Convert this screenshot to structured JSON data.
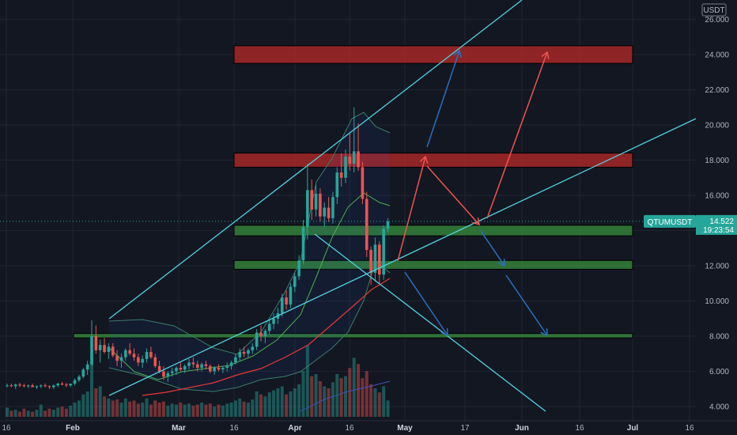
{
  "chart_data": {
    "type": "candlestick",
    "symbol": "QTUMUSDT",
    "currency": "USDT",
    "last_price": "14.522",
    "countdown": "19:23:54",
    "ylim": [
      3.4,
      27.2
    ],
    "y_ticks": [
      "26.000",
      "24.000",
      "22.000",
      "20.000",
      "18.000",
      "16.000",
      "12.000",
      "10.000",
      "8.000",
      "6.000",
      "4.000"
    ],
    "x_ticks": [
      {
        "label": "16",
        "bold": false
      },
      {
        "label": "Feb",
        "bold": true
      },
      {
        "label": "Mar",
        "bold": true
      },
      {
        "label": "16",
        "bold": false
      },
      {
        "label": "Apr",
        "bold": true
      },
      {
        "label": "16",
        "bold": false
      },
      {
        "label": "May",
        "bold": true
      },
      {
        "label": "17",
        "bold": false
      },
      {
        "label": "Jun",
        "bold": true
      },
      {
        "label": "16",
        "bold": false
      },
      {
        "label": "Jul",
        "bold": true
      },
      {
        "label": "16",
        "bold": false
      }
    ],
    "candles": [
      [
        5.2,
        5.3,
        5.1,
        5.2
      ],
      [
        5.2,
        5.3,
        5.1,
        5.15
      ],
      [
        5.15,
        5.3,
        5.0,
        5.25
      ],
      [
        5.25,
        5.35,
        5.1,
        5.2
      ],
      [
        5.2,
        5.3,
        5.1,
        5.15
      ],
      [
        5.15,
        5.25,
        5.05,
        5.2
      ],
      [
        5.2,
        5.3,
        5.1,
        5.1
      ],
      [
        5.1,
        5.2,
        5.0,
        5.15
      ],
      [
        5.15,
        5.25,
        5.05,
        5.2
      ],
      [
        5.2,
        5.3,
        5.1,
        5.15
      ],
      [
        5.15,
        5.2,
        5.0,
        5.1
      ],
      [
        5.1,
        5.25,
        5.0,
        5.2
      ],
      [
        5.2,
        5.35,
        5.1,
        5.3
      ],
      [
        5.3,
        5.4,
        5.2,
        5.25
      ],
      [
        5.25,
        5.35,
        5.1,
        5.2
      ],
      [
        5.2,
        5.3,
        5.1,
        5.3
      ],
      [
        5.3,
        5.6,
        5.2,
        5.5
      ],
      [
        5.5,
        5.8,
        5.4,
        5.7
      ],
      [
        5.7,
        6.2,
        5.6,
        6.1
      ],
      [
        6.1,
        6.6,
        5.8,
        6.4
      ],
      [
        6.4,
        8.9,
        6.3,
        8.0
      ],
      [
        8.0,
        8.6,
        7.0,
        7.2
      ],
      [
        7.2,
        7.8,
        6.5,
        7.5
      ],
      [
        7.5,
        7.9,
        7.0,
        7.1
      ],
      [
        7.1,
        7.6,
        6.7,
        7.4
      ],
      [
        7.4,
        7.6,
        6.8,
        6.9
      ],
      [
        6.9,
        7.2,
        6.3,
        6.6
      ],
      [
        6.6,
        7.0,
        6.2,
        6.8
      ],
      [
        6.8,
        7.3,
        6.6,
        7.2
      ],
      [
        7.2,
        7.6,
        6.9,
        7.0
      ],
      [
        7.0,
        7.3,
        6.6,
        6.8
      ],
      [
        6.8,
        7.0,
        6.3,
        6.5
      ],
      [
        6.5,
        6.9,
        6.2,
        6.7
      ],
      [
        6.7,
        7.3,
        6.5,
        7.1
      ],
      [
        7.1,
        7.4,
        6.7,
        6.8
      ],
      [
        6.8,
        7.0,
        6.2,
        6.3
      ],
      [
        6.3,
        6.6,
        5.9,
        6.0
      ],
      [
        6.0,
        6.3,
        5.5,
        5.7
      ],
      [
        5.7,
        6.0,
        5.4,
        5.9
      ],
      [
        5.9,
        6.2,
        5.7,
        6.0
      ],
      [
        6.0,
        6.3,
        5.8,
        6.2
      ],
      [
        6.2,
        6.5,
        6.0,
        6.1
      ],
      [
        6.1,
        6.4,
        5.9,
        6.3
      ],
      [
        6.3,
        6.7,
        6.1,
        6.5
      ],
      [
        6.5,
        6.8,
        6.2,
        6.4
      ],
      [
        6.4,
        6.6,
        6.0,
        6.2
      ],
      [
        6.2,
        6.5,
        6.0,
        6.4
      ],
      [
        6.4,
        6.6,
        6.1,
        6.3
      ],
      [
        6.3,
        6.4,
        5.9,
        6.0
      ],
      [
        6.0,
        6.3,
        5.8,
        6.2
      ],
      [
        6.2,
        6.4,
        6.0,
        6.1
      ],
      [
        6.1,
        6.3,
        5.9,
        6.2
      ],
      [
        6.2,
        6.5,
        6.0,
        6.3
      ],
      [
        6.3,
        6.6,
        6.1,
        6.5
      ],
      [
        6.5,
        7.0,
        6.4,
        6.8
      ],
      [
        6.8,
        7.3,
        6.6,
        7.1
      ],
      [
        7.1,
        7.4,
        6.8,
        7.0
      ],
      [
        7.0,
        7.3,
        6.8,
        7.2
      ],
      [
        7.2,
        7.6,
        7.0,
        7.4
      ],
      [
        7.4,
        8.4,
        7.2,
        8.2
      ],
      [
        8.2,
        8.6,
        7.7,
        8.0
      ],
      [
        8.0,
        8.4,
        7.6,
        8.3
      ],
      [
        8.3,
        8.9,
        8.1,
        8.7
      ],
      [
        8.7,
        9.3,
        8.4,
        9.0
      ],
      [
        9.0,
        9.6,
        8.7,
        9.3
      ],
      [
        9.3,
        10.4,
        9.1,
        10.2
      ],
      [
        10.2,
        10.6,
        9.5,
        9.8
      ],
      [
        9.8,
        11.0,
        9.6,
        10.8
      ],
      [
        10.8,
        11.6,
        10.5,
        11.4
      ],
      [
        11.4,
        12.6,
        11.2,
        12.3
      ],
      [
        12.3,
        14.6,
        12.1,
        14.2
      ],
      [
        14.2,
        17.8,
        13.5,
        16.3
      ],
      [
        16.3,
        16.9,
        14.6,
        15.2
      ],
      [
        15.2,
        16.6,
        14.8,
        16.1
      ],
      [
        16.1,
        16.4,
        14.5,
        14.8
      ],
      [
        14.8,
        15.6,
        14.2,
        15.3
      ],
      [
        15.3,
        15.9,
        14.5,
        14.7
      ],
      [
        14.7,
        16.2,
        14.4,
        15.9
      ],
      [
        15.9,
        17.6,
        15.5,
        17.3
      ],
      [
        17.3,
        18.4,
        16.5,
        17.0
      ],
      [
        17.0,
        18.6,
        16.7,
        18.2
      ],
      [
        18.2,
        19.5,
        17.4,
        17.8
      ],
      [
        17.8,
        21.0,
        17.3,
        18.5
      ],
      [
        18.5,
        20.1,
        17.4,
        17.6
      ],
      [
        17.6,
        17.9,
        15.5,
        15.8
      ],
      [
        15.8,
        16.2,
        12.5,
        12.9
      ],
      [
        12.9,
        13.1,
        10.9,
        11.6
      ],
      [
        11.6,
        13.6,
        11.1,
        13.2
      ],
      [
        13.2,
        13.4,
        11.0,
        11.5
      ],
      [
        11.5,
        14.3,
        11.2,
        14.1
      ],
      [
        14.1,
        14.7,
        13.9,
        14.52
      ]
    ],
    "volumes": [
      9,
      6,
      7,
      5,
      8,
      6,
      5,
      7,
      12,
      6,
      8,
      7,
      9,
      10,
      8,
      11,
      14,
      16,
      22,
      25,
      55,
      28,
      30,
      20,
      18,
      16,
      17,
      14,
      18,
      15,
      16,
      13,
      14,
      18,
      12,
      16,
      14,
      15,
      11,
      13,
      12,
      14,
      12,
      13,
      11,
      12,
      14,
      12,
      13,
      10,
      12,
      11,
      13,
      14,
      16,
      18,
      15,
      14,
      17,
      25,
      22,
      20,
      24,
      26,
      28,
      30,
      22,
      25,
      28,
      32,
      45,
      70,
      40,
      42,
      35,
      30,
      28,
      34,
      42,
      38,
      40,
      48,
      58,
      52,
      38,
      45,
      32,
      28,
      24,
      30,
      16
    ],
    "zones_support": [
      {
        "low": 13.7,
        "high": 14.3
      },
      {
        "low": 11.8,
        "high": 12.3
      },
      {
        "low": 7.9,
        "high": 8.15
      }
    ],
    "zones_resistance": [
      {
        "low": 23.5,
        "high": 24.5
      },
      {
        "low": 17.6,
        "high": 18.4
      }
    ]
  }
}
